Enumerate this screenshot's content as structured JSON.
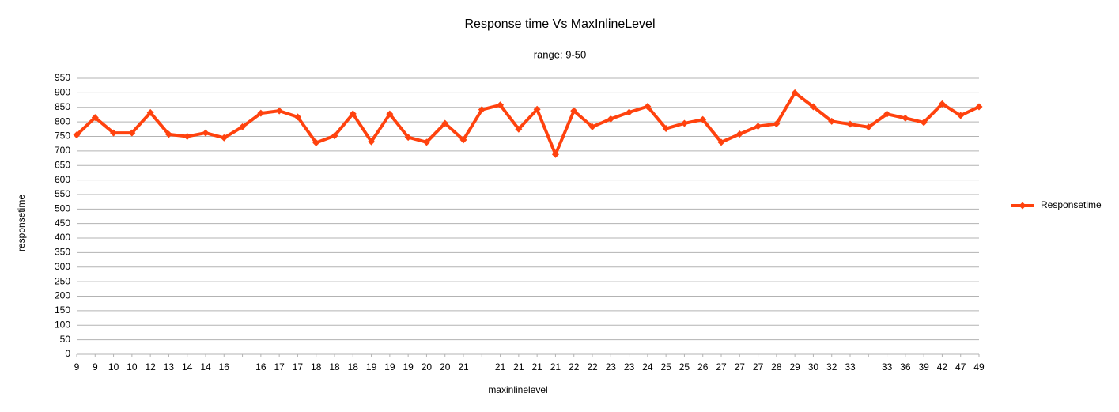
{
  "chart_data": {
    "type": "line",
    "title": "Response time Vs MaxInlineLevel",
    "subtitle": "range: 9-50",
    "x_label": "maxinlinelevel",
    "y_label": "responsetime",
    "categories": [
      "9",
      "9",
      "10",
      "10",
      "12",
      "13",
      "14",
      "14",
      "16",
      null,
      "16",
      "17",
      "17",
      "18",
      "18",
      "18",
      "19",
      "19",
      "19",
      "20",
      "20",
      "21",
      null,
      "21",
      "21",
      "21",
      "21",
      "22",
      "22",
      "23",
      "23",
      "24",
      "25",
      "25",
      "26",
      "27",
      "27",
      "27",
      "28",
      "29",
      "30",
      "32",
      "33",
      null,
      "33",
      "36",
      "39",
      "42",
      "47",
      "49"
    ],
    "series": [
      {
        "name": "Responsetime",
        "color": "#ff420e",
        "values": [
          755,
          815,
          762,
          762,
          832,
          757,
          750,
          762,
          745,
          783,
          830,
          838,
          817,
          728,
          752,
          828,
          732,
          827,
          747,
          730,
          795,
          738,
          842,
          858,
          775,
          843,
          688,
          838,
          783,
          810,
          833,
          853,
          777,
          795,
          808,
          730,
          758,
          785,
          793,
          900,
          852,
          802,
          792,
          782,
          827,
          813,
          798,
          862,
          822,
          852
        ]
      }
    ],
    "ylim": [
      0,
      950
    ],
    "yticks": [
      0,
      50,
      100,
      150,
      200,
      250,
      300,
      350,
      400,
      450,
      500,
      550,
      600,
      650,
      700,
      750,
      800,
      850,
      900,
      950
    ],
    "grid": true,
    "legend": "right"
  }
}
